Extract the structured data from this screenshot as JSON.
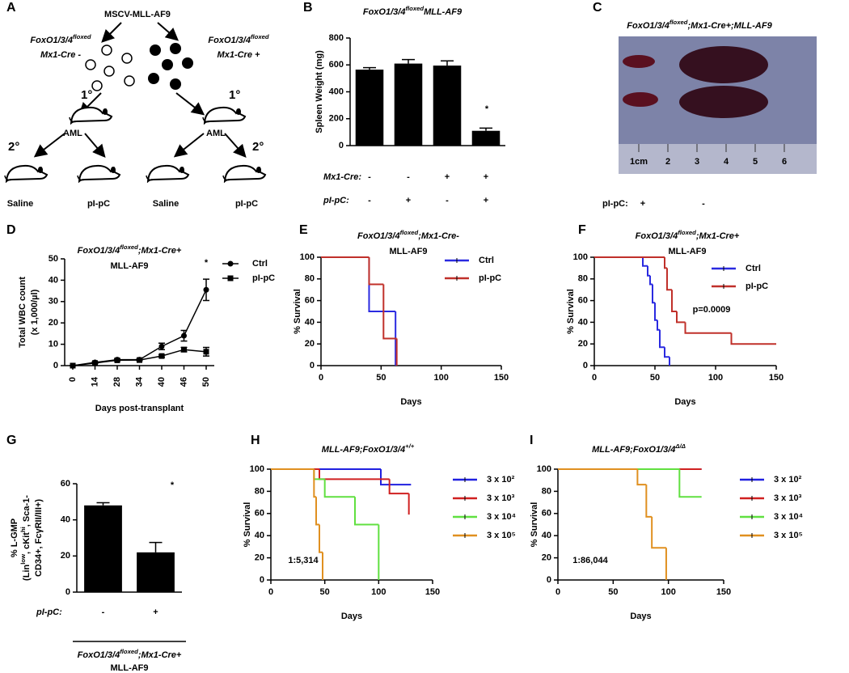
{
  "panel_labels": [
    "A",
    "B",
    "C",
    "D",
    "E",
    "F",
    "G",
    "H",
    "I"
  ],
  "diagram": {
    "vector": "MSCV-MLL-AF9",
    "left_genotype": [
      {
        "text": "FoxO1/3/4"
      },
      {
        "text": "floxed",
        "sup": true
      }
    ],
    "left_cre": "Mx1-Cre -",
    "right_genotype": [
      {
        "text": "FoxO1/3/4"
      },
      {
        "text": "floxed",
        "sup": true
      }
    ],
    "right_cre": "Mx1-Cre +",
    "primary": [
      "1°",
      "1°"
    ],
    "aml": [
      "AML",
      "AML"
    ],
    "secondary": [
      "2°",
      "2°"
    ],
    "treatments": [
      "Saline",
      "pI-pC",
      "Saline",
      "pI-pC"
    ]
  },
  "photo": {
    "title": [
      {
        "text": "FoxO1/3/4"
      },
      {
        "text": "floxed",
        "sup": true
      },
      {
        "text": ";Mx1-Cre+;MLL-AF9"
      }
    ],
    "ruler_labels": [
      "1cm",
      "2",
      "3",
      "4",
      "5",
      "6"
    ],
    "row_label": "pI-pC:",
    "row_values": [
      "+",
      "-"
    ]
  },
  "chart_data": [
    {
      "type": "bar",
      "title": [
        {
          "text": "FoxO1/3/4"
        },
        {
          "text": "floxed",
          "sup": true
        },
        {
          "text": "MLL-AF9"
        }
      ],
      "ylabel": [
        "Spleen Weight (mg)"
      ],
      "values": [
        565,
        610,
        595,
        110
      ],
      "errors": [
        15,
        30,
        35,
        20
      ],
      "color": "#000000",
      "ylim": [
        0,
        800
      ],
      "yticks": [
        0,
        200,
        400,
        600,
        800
      ],
      "annotation": "*",
      "condition_rows": [
        {
          "label": "Mx1-Cre:",
          "values": [
            "-",
            "-",
            "+",
            "+"
          ]
        },
        {
          "label": "pI-pC:",
          "values": [
            "-",
            "+",
            "-",
            "+"
          ]
        }
      ]
    },
    {
      "type": "line",
      "title": [
        {
          "text": "FoxO1/3/4"
        },
        {
          "text": "floxed",
          "sup": true
        },
        {
          "text": ";Mx1-Cre+"
        }
      ],
      "subtitle": "MLL-AF9",
      "ylabel": [
        "Total WBC count",
        "(x 1,000/µl)"
      ],
      "xlabel": "Days post-transplant",
      "categories": [
        "0",
        "14",
        "28",
        "34",
        "40",
        "46",
        "50"
      ],
      "ylim": [
        0,
        50
      ],
      "yticks": [
        0,
        10,
        20,
        30,
        40,
        50
      ],
      "annotation": "*",
      "series": [
        {
          "name": "Ctrl",
          "color": "#000000",
          "marker": "circle",
          "values": [
            0,
            1.5,
            2.8,
            2.8,
            9,
            14,
            35.5
          ],
          "errors": [
            0,
            0.3,
            0.3,
            0.3,
            1.5,
            2.5,
            5
          ]
        },
        {
          "name": "pI-pC",
          "color": "#000000",
          "marker": "square",
          "values": [
            0,
            1.2,
            2.5,
            2.6,
            4.5,
            7.5,
            6.5
          ],
          "errors": [
            0,
            0.2,
            0.3,
            0.3,
            0.5,
            1,
            2
          ]
        }
      ]
    },
    {
      "type": "step",
      "title": [
        {
          "text": "FoxO1/3/4"
        },
        {
          "text": "floxed",
          "sup": true
        },
        {
          "text": ";Mx1-Cre-"
        }
      ],
      "subtitle": "MLL-AF9",
      "ylabel": [
        "% Survival"
      ],
      "xlabel": "Days",
      "xlim": [
        0,
        150
      ],
      "xticks": [
        0,
        50,
        100,
        150
      ],
      "ylim": [
        0,
        100
      ],
      "yticks": [
        0,
        20,
        40,
        60,
        80,
        100
      ],
      "legend": "upper right",
      "series": [
        {
          "name": "Ctrl",
          "color": "#2a2ae0",
          "x": [
            0,
            40,
            62
          ],
          "values": [
            100,
            50,
            0
          ]
        },
        {
          "name": "pI-pC",
          "color": "#c0302a",
          "x": [
            0,
            40,
            52,
            63
          ],
          "values": [
            100,
            75,
            25,
            0
          ]
        }
      ]
    },
    {
      "type": "step",
      "title": [
        {
          "text": "FoxO1/3/4"
        },
        {
          "text": "floxed",
          "sup": true
        },
        {
          "text": ";Mx1-Cre+"
        }
      ],
      "subtitle": "MLL-AF9",
      "ylabel": [
        "% Survival"
      ],
      "xlabel": "Days",
      "xlim": [
        0,
        150
      ],
      "xticks": [
        0,
        50,
        100,
        150
      ],
      "ylim": [
        0,
        100
      ],
      "yticks": [
        0,
        20,
        40,
        60,
        80,
        100
      ],
      "legend": "upper right",
      "annotation": "p=0.0009",
      "series": [
        {
          "name": "Ctrl",
          "color": "#2a2ae0",
          "x": [
            0,
            40,
            44,
            46,
            48,
            50,
            52,
            54,
            58,
            62
          ],
          "values": [
            100,
            92,
            83,
            75,
            58,
            42,
            33,
            17,
            8,
            0
          ]
        },
        {
          "name": "pI-pC",
          "color": "#c0302a",
          "x": [
            0,
            58,
            60,
            64,
            68,
            75,
            113,
            150
          ],
          "values": [
            100,
            90,
            70,
            50,
            40,
            30,
            20,
            20
          ]
        }
      ]
    },
    {
      "type": "bar",
      "ylabel": [
        "% L-GMP",
        [
          {
            "text": "(Lin"
          },
          {
            "text": "low",
            "sup": true
          },
          {
            "text": ", cKit"
          },
          {
            "text": "hi",
            "sup": true
          },
          {
            "text": ", Sca-1-"
          }
        ],
        "CD34+, FcγRII/III+)"
      ],
      "values": [
        48,
        22
      ],
      "errors": [
        1.5,
        5.5
      ],
      "color": "#000000",
      "ylim": [
        0,
        60
      ],
      "yticks": [
        0,
        20,
        40,
        60
      ],
      "annotation": "*",
      "condition_rows": [
        {
          "label": "pI-pC:",
          "values": [
            "-",
            "+"
          ]
        }
      ],
      "footer": [
        [
          {
            "text": "FoxO1/3/4"
          },
          {
            "text": "floxed",
            "sup": true
          },
          {
            "text": ";Mx1-Cre+"
          }
        ],
        "MLL-AF9"
      ]
    },
    {
      "type": "step",
      "title": [
        {
          "text": "MLL-AF9;"
        },
        {
          "text": "FoxO1/3/4"
        },
        {
          "text": "+/+",
          "sup": true
        }
      ],
      "ylabel": [
        "% Survival"
      ],
      "xlabel": "Days",
      "xlim": [
        0,
        150
      ],
      "xticks": [
        0,
        50,
        100,
        150
      ],
      "ylim": [
        0,
        100
      ],
      "yticks": [
        0,
        20,
        40,
        60,
        80,
        100
      ],
      "legend": "right",
      "annotation": "1:5,314",
      "series": [
        {
          "name": "3 x 10²",
          "color": "#2020e0",
          "x": [
            0,
            102,
            130
          ],
          "values": [
            100,
            86,
            86
          ]
        },
        {
          "name": "3 x 10³",
          "color": "#d02020",
          "x": [
            0,
            45,
            110,
            128
          ],
          "values": [
            100,
            91,
            78,
            59
          ]
        },
        {
          "name": "3 x 10⁴",
          "color": "#60e040",
          "x": [
            0,
            40,
            50,
            78,
            100
          ],
          "values": [
            100,
            91,
            75,
            50,
            0
          ]
        },
        {
          "name": "3 x 10⁵",
          "color": "#e09020",
          "x": [
            0,
            40,
            42,
            45,
            48
          ],
          "values": [
            100,
            75,
            50,
            25,
            0
          ]
        }
      ]
    },
    {
      "type": "step",
      "title": [
        {
          "text": "MLL-AF9;"
        },
        {
          "text": "FoxO1/3/4"
        },
        {
          "text": "Δ/Δ",
          "sup": true
        }
      ],
      "ylabel": [
        "% Survival"
      ],
      "xlabel": "Days",
      "xlim": [
        0,
        150
      ],
      "xticks": [
        0,
        50,
        100,
        150
      ],
      "ylim": [
        0,
        100
      ],
      "yticks": [
        0,
        20,
        40,
        60,
        80,
        100
      ],
      "legend": "right",
      "annotation": "1:86,044",
      "series": [
        {
          "name": "3 x 10²",
          "color": "#2020e0",
          "x": [
            0,
            130
          ],
          "values": [
            100,
            100
          ]
        },
        {
          "name": "3 x 10³",
          "color": "#d02020",
          "x": [
            0,
            130
          ],
          "values": [
            100,
            100
          ]
        },
        {
          "name": "3 x 10⁴",
          "color": "#60e040",
          "x": [
            0,
            110,
            130
          ],
          "values": [
            100,
            75,
            75
          ]
        },
        {
          "name": "3 x 10⁵",
          "color": "#e09020",
          "x": [
            0,
            72,
            80,
            85,
            98
          ],
          "values": [
            100,
            86,
            57,
            29,
            0
          ]
        }
      ]
    }
  ]
}
